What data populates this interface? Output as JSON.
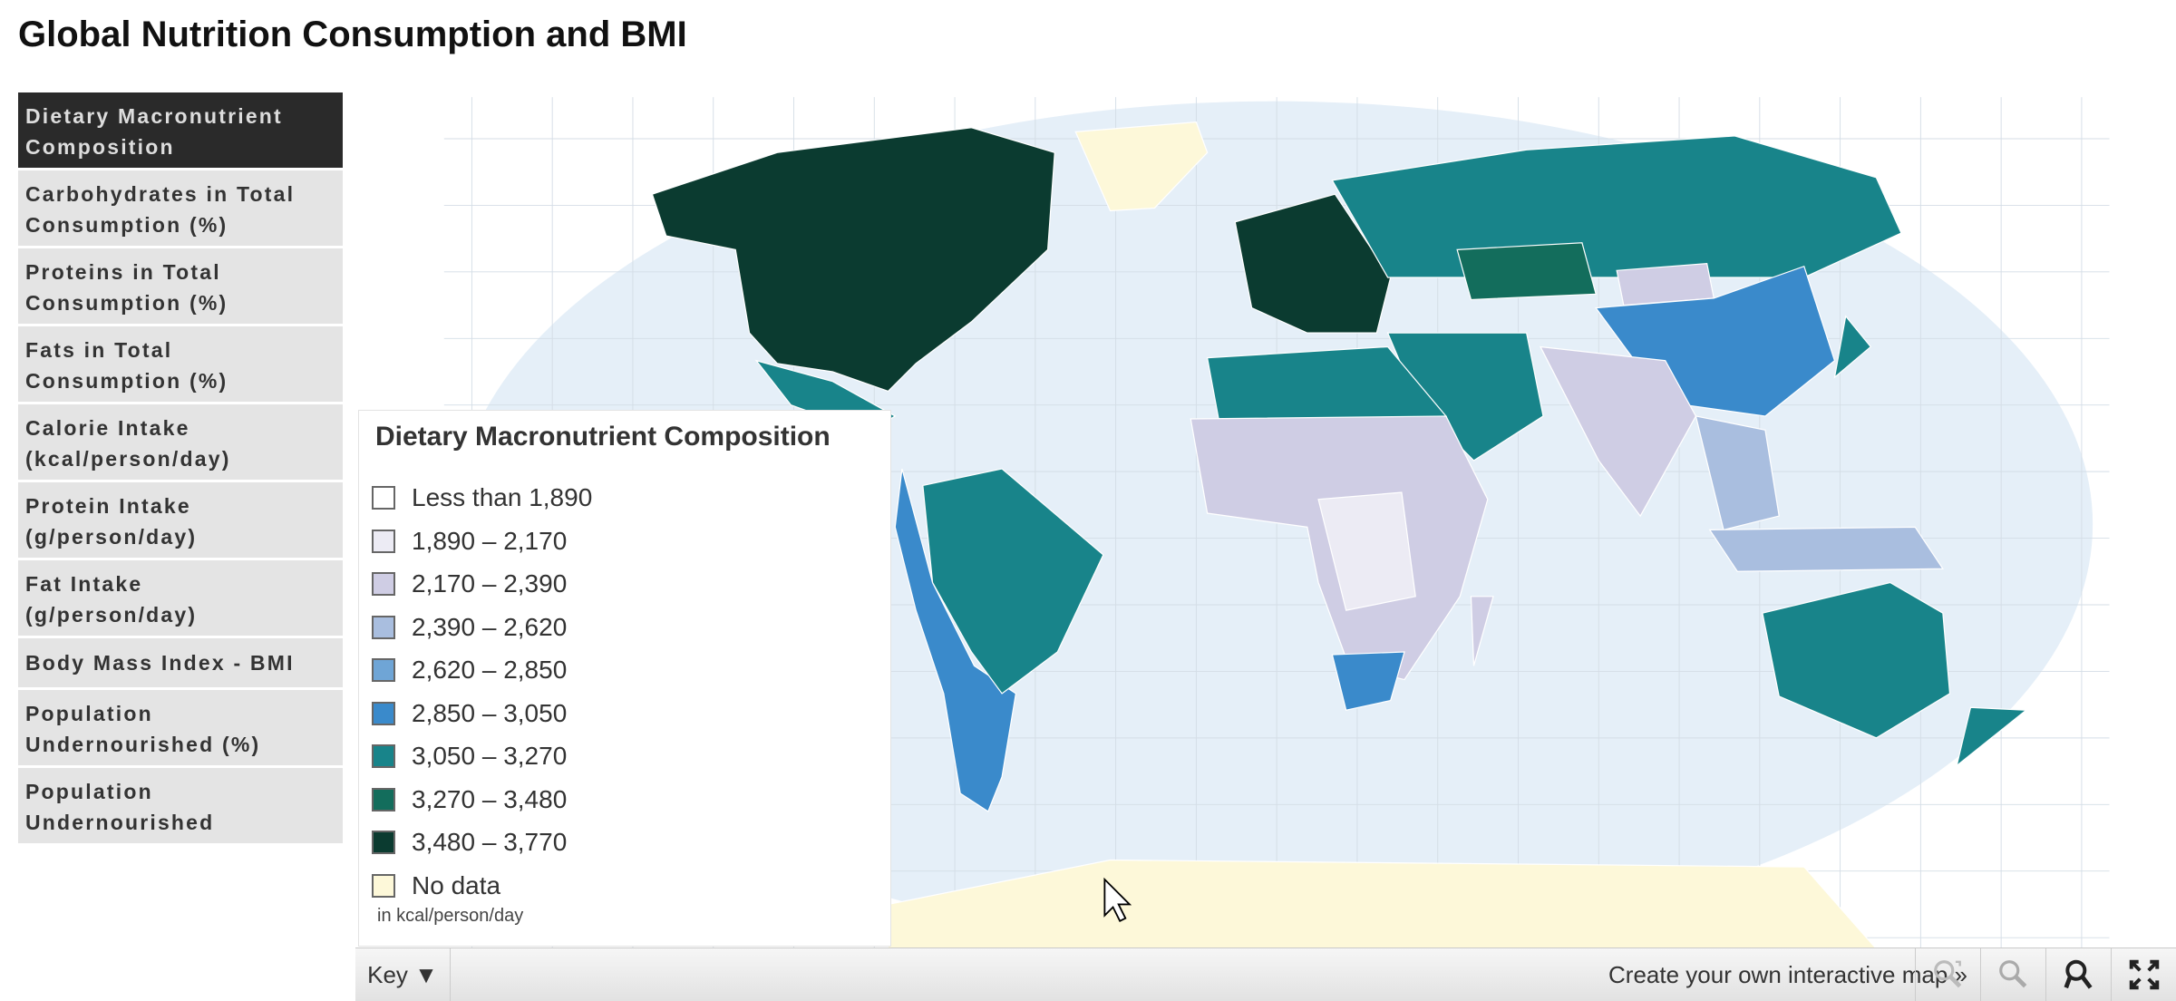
{
  "page": {
    "title": "Global Nutrition Consumption and BMI"
  },
  "sidebar": {
    "items": [
      {
        "line1": "Dietary Macronutrient",
        "line2": "Composition",
        "active": true
      },
      {
        "line1": "Carbohydrates in Total",
        "line2": "Consumption (%)"
      },
      {
        "line1": "Proteins in Total",
        "line2": "Consumption (%)"
      },
      {
        "line1": "Fats in Total",
        "line2": "Consumption (%)"
      },
      {
        "line1": "Calorie Intake",
        "line2": "(kcal/person/day)"
      },
      {
        "line1": "Protein Intake",
        "line2": "(g/person/day)"
      },
      {
        "line1": "Fat Intake",
        "line2": "(g/person/day)"
      },
      {
        "line1": "Body Mass Index - BMI",
        "line2": ""
      },
      {
        "line1": "Population",
        "line2": "Undernourished (%)"
      },
      {
        "line1": "Population",
        "line2": "Undernourished"
      }
    ]
  },
  "legend": {
    "title": "Dietary Macronutrient Composition",
    "unit": "in kcal/person/day",
    "items": [
      {
        "label": "Less than 1,890",
        "color": "#ffffff"
      },
      {
        "label": "1,890 – 2,170",
        "color": "#ecebf4"
      },
      {
        "label": "2,170 – 2,390",
        "color": "#cfcde4"
      },
      {
        "label": "2,390 – 2,620",
        "color": "#a9bedf"
      },
      {
        "label": "2,620 – 2,850",
        "color": "#6fa5d6"
      },
      {
        "label": "2,850 – 3,050",
        "color": "#3a8acb"
      },
      {
        "label": "3,050 – 3,270",
        "color": "#18848a"
      },
      {
        "label": "3,270 – 3,480",
        "color": "#136d5c"
      },
      {
        "label": "3,480 – 3,770",
        "color": "#0b3b30"
      },
      {
        "label": "No data",
        "color": "#fdf8d9"
      }
    ]
  },
  "map": {
    "ocean_color": "#e5eff8",
    "graticule_color": "#d4dde6"
  },
  "bottombar": {
    "key_label": "Key ▼",
    "create_link": "Create your own interactive map »",
    "tools": [
      "zoom-reset-icon",
      "zoom-out-icon",
      "zoom-in-icon",
      "fullscreen-icon"
    ]
  }
}
